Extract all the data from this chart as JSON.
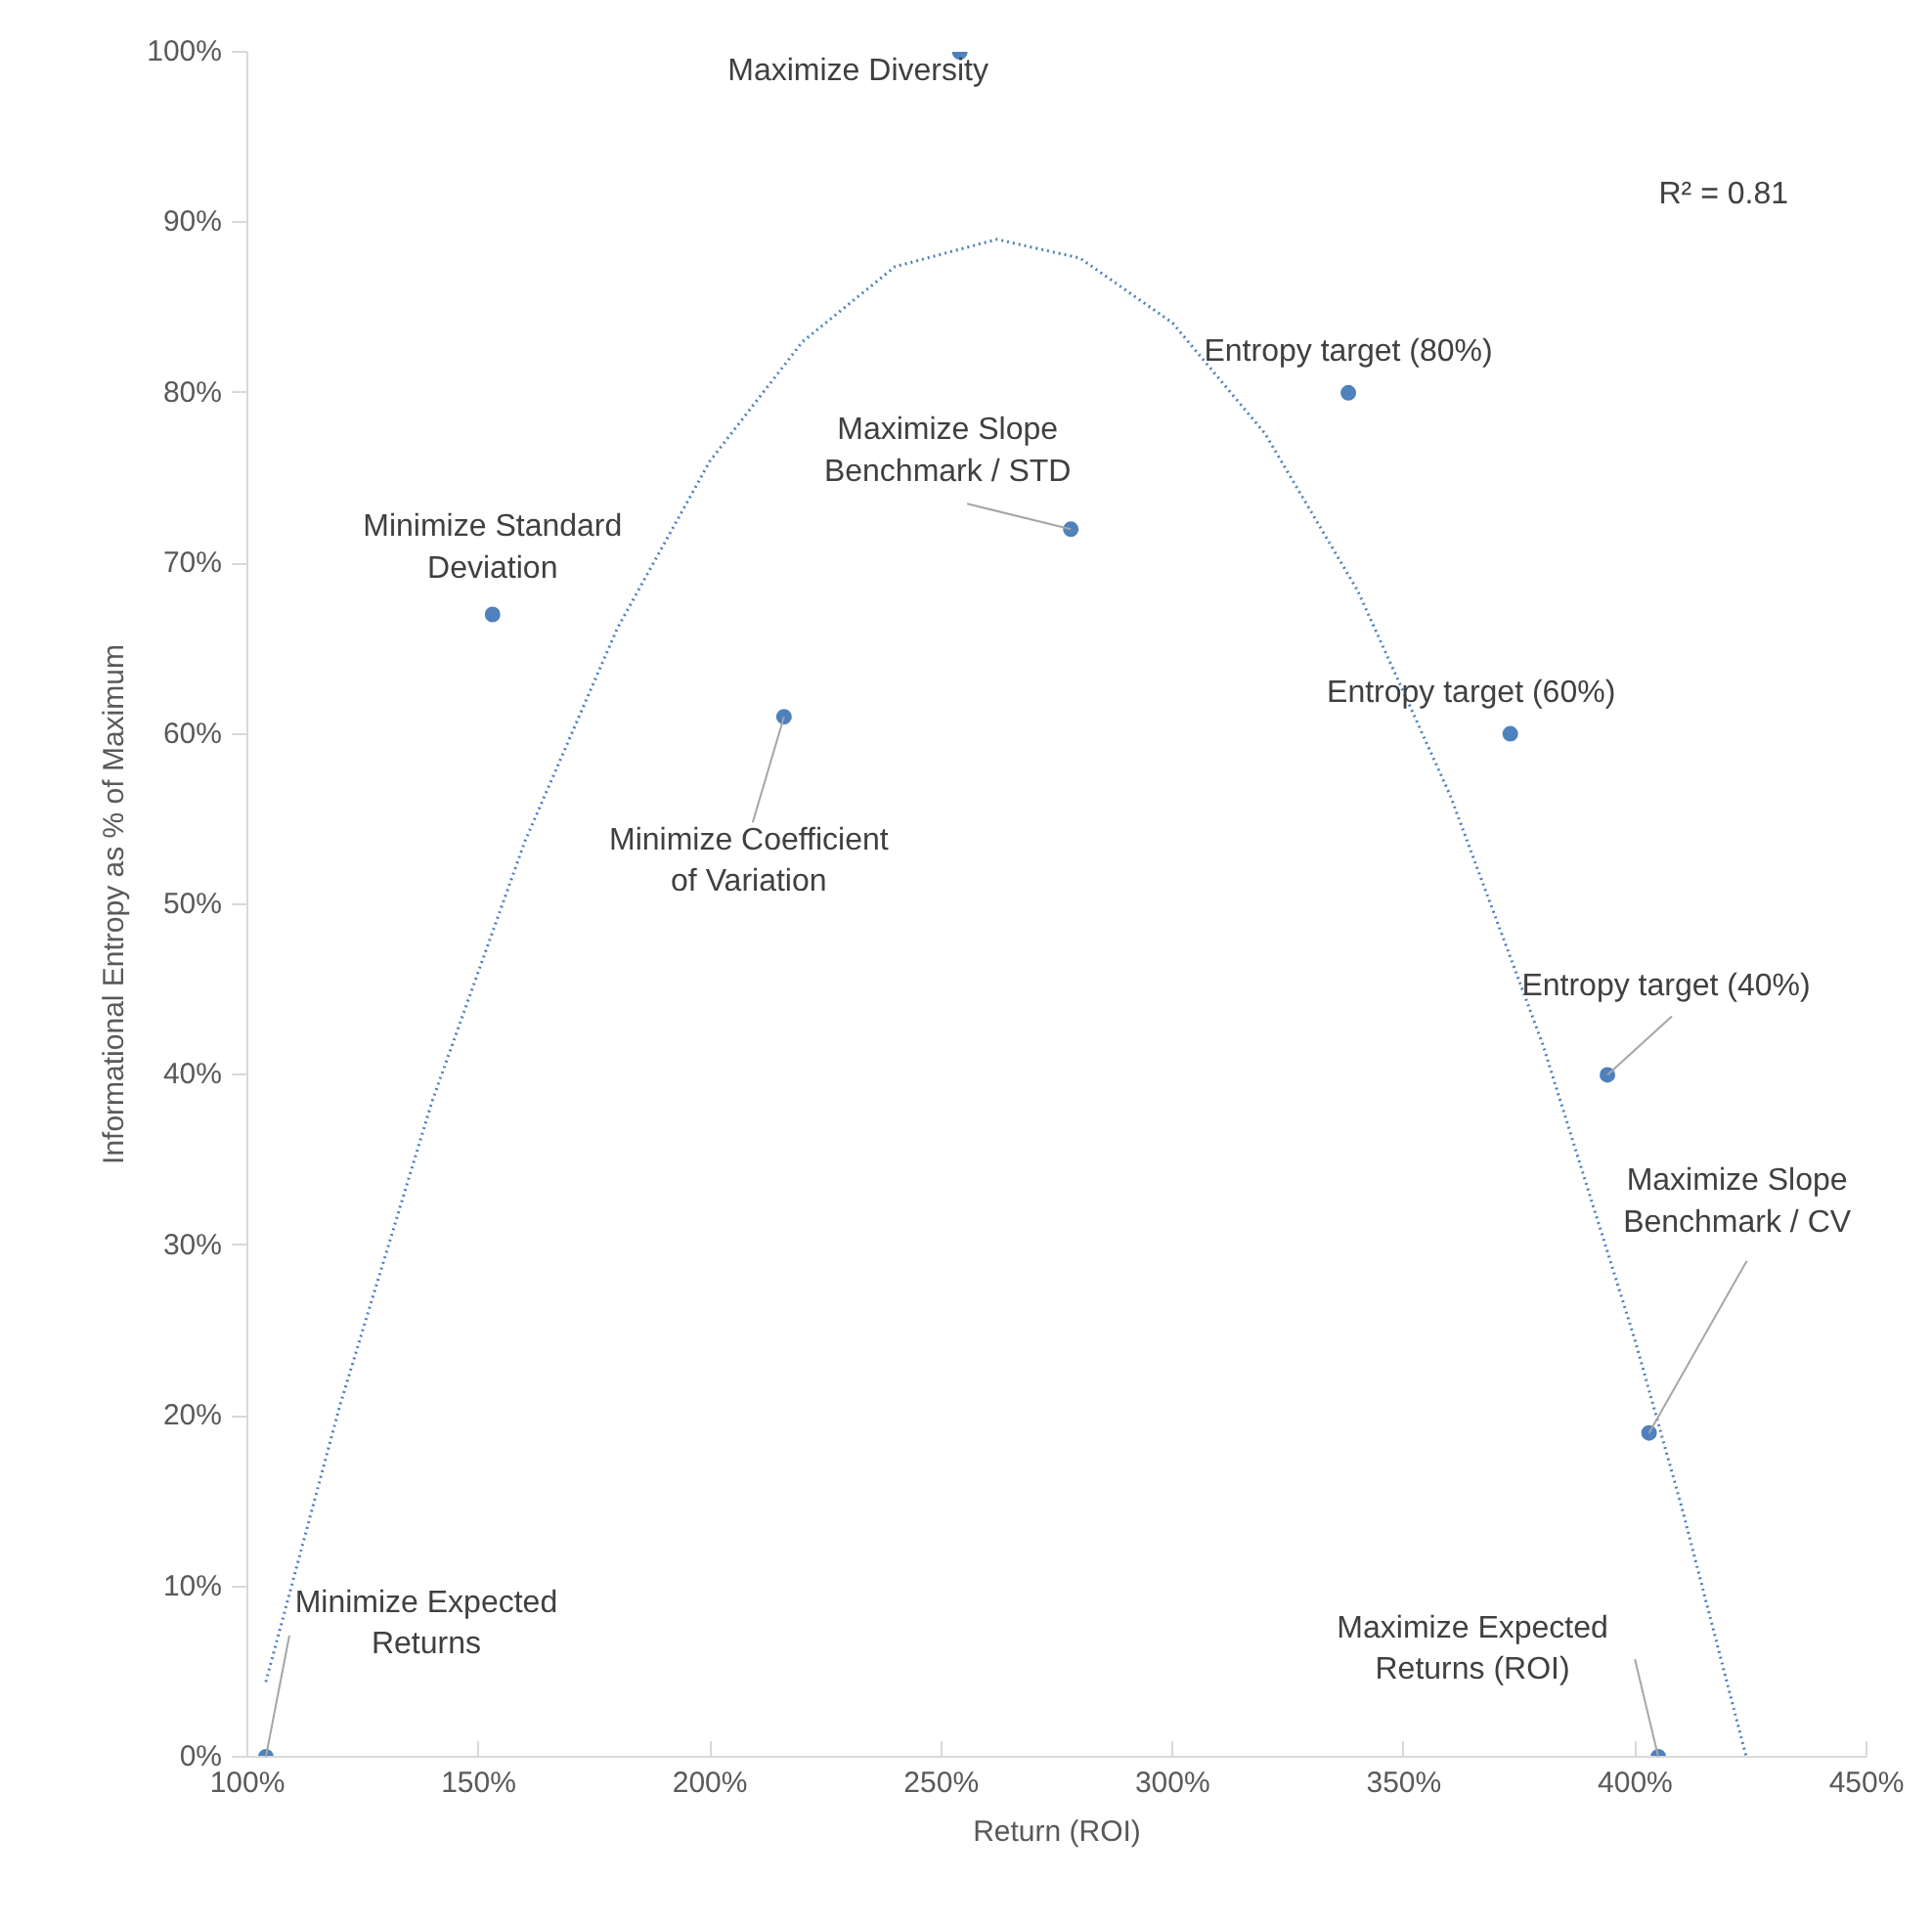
{
  "chart_data": {
    "type": "scatter",
    "xlabel": "Return (ROI)",
    "ylabel": "Informational Entropy as % of Maximum",
    "xlim": [
      100,
      450
    ],
    "ylim": [
      0,
      100
    ],
    "xticks": [
      {
        "value": 100,
        "label": "100%"
      },
      {
        "value": 150,
        "label": "150%"
      },
      {
        "value": 200,
        "label": "200%"
      },
      {
        "value": 250,
        "label": "250%"
      },
      {
        "value": 300,
        "label": "300%"
      },
      {
        "value": 350,
        "label": "350%"
      },
      {
        "value": 400,
        "label": "400%"
      },
      {
        "value": 450,
        "label": "450%"
      }
    ],
    "yticks": [
      {
        "value": 0,
        "label": "0%"
      },
      {
        "value": 10,
        "label": "10%"
      },
      {
        "value": 20,
        "label": "20%"
      },
      {
        "value": 30,
        "label": "30%"
      },
      {
        "value": 40,
        "label": "40%"
      },
      {
        "value": 50,
        "label": "50%"
      },
      {
        "value": 60,
        "label": "60%"
      },
      {
        "value": 70,
        "label": "70%"
      },
      {
        "value": 80,
        "label": "80%"
      },
      {
        "value": 90,
        "label": "90%"
      },
      {
        "value": 100,
        "label": "100%"
      }
    ],
    "grid": false,
    "marker": "circle",
    "series": [
      {
        "color": "#4f81bd",
        "x": [
          104,
          153,
          216,
          254,
          278,
          338,
          373,
          394,
          403,
          405
        ],
        "values": [
          0,
          67,
          61,
          100,
          72,
          80,
          60,
          40,
          19,
          0
        ]
      },
      {
        "type": "line",
        "line_style": "dotted",
        "marker": "none",
        "color": "#4f81bd",
        "x": [
          104,
          120,
          140,
          160,
          180,
          200,
          220,
          240,
          262,
          280,
          300,
          320,
          340,
          360,
          380,
          400,
          410,
          424
        ],
        "values": [
          4.4,
          20.6,
          38.5,
          53.7,
          66.2,
          76.0,
          83.0,
          87.4,
          89.0,
          87.9,
          84.1,
          77.6,
          68.4,
          56.4,
          41.8,
          24.4,
          14.7,
          0
        ]
      }
    ],
    "annotations": [
      {
        "text": "Minimize Expected\nReturns",
        "x": 104,
        "y": 0
      },
      {
        "text": "Minimize Standard\nDeviation",
        "x": 153,
        "y": 67
      },
      {
        "text": "Minimize Coefficient\nof Variation",
        "x": 216,
        "y": 61
      },
      {
        "text": "Maximize Diversity",
        "x": 254,
        "y": 100
      },
      {
        "text": "Maximize Slope\nBenchmark / STD",
        "x": 278,
        "y": 72
      },
      {
        "text": "Entropy target (80%)",
        "x": 338,
        "y": 80
      },
      {
        "text": "Entropy target (60%)",
        "x": 373,
        "y": 60
      },
      {
        "text": "Entropy target (40%)",
        "x": 394,
        "y": 40
      },
      {
        "text": "Maximize Slope\nBenchmark / CV",
        "x": 403,
        "y": 19
      },
      {
        "text": "Maximize Expected\nReturns (ROI)",
        "x": 405,
        "y": 0
      },
      "R² = 0.81"
    ]
  }
}
